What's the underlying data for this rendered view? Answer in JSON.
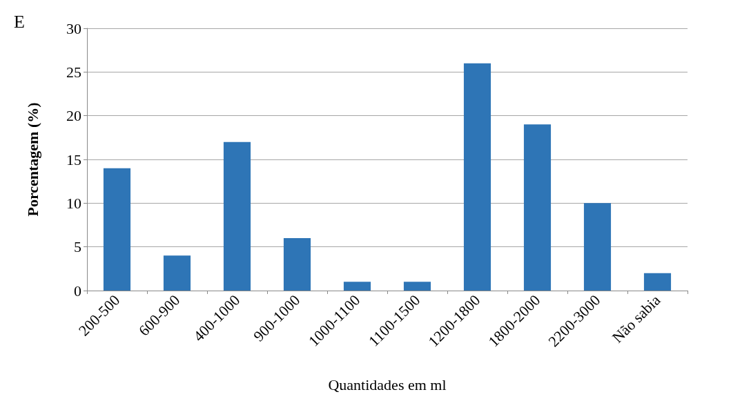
{
  "chart_data": {
    "type": "bar",
    "xlabel": "Quantidades em ml",
    "ylabel": "Porcentagem (%)",
    "annotations": [
      "E"
    ],
    "categories": [
      "200-500",
      "600-900",
      "400-1000",
      "900-1000",
      "1000-1100",
      "1100-1500",
      "1200-1800",
      "1800-2000",
      "2200-3000",
      "Não sabia"
    ],
    "values": [
      14,
      4,
      17,
      6,
      1,
      1,
      26,
      19,
      10,
      2
    ],
    "color": "#2e75b6",
    "ylim": [
      0,
      30
    ],
    "yticks": [
      0,
      5,
      10,
      15,
      20,
      25,
      30
    ],
    "grid": "y"
  }
}
